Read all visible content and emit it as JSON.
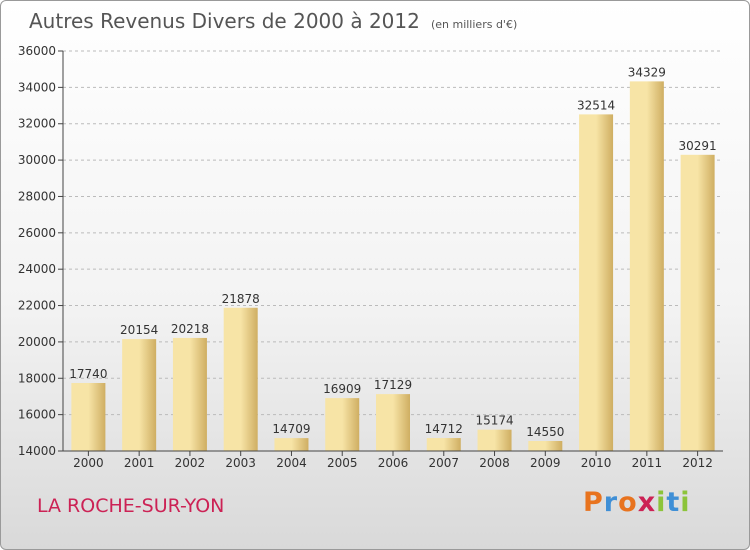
{
  "header": {
    "title": "Autres Revenus Divers de 2000 à 2012",
    "subtitle": "(en milliers d'€)"
  },
  "footer": {
    "place": "LA ROCHE-SUR-YON",
    "brand": "Proxiti",
    "brand_colors": [
      "#e8731e",
      "#3f8fd6",
      "#e8731e",
      "#cc2255",
      "#8cc43a",
      "#3f8fd6",
      "#8cc43a"
    ]
  },
  "colors": {
    "bar_light": "#f7e4a6",
    "bar_dark": "#cfae62",
    "axis": "#444444",
    "grid": "#bbbbbb",
    "text": "#333333"
  },
  "chart_data": {
    "type": "bar",
    "title": "Autres Revenus Divers de 2000 à 2012",
    "subtitle": "(en milliers d'€)",
    "categories": [
      "2000",
      "2001",
      "2002",
      "2003",
      "2004",
      "2005",
      "2006",
      "2007",
      "2008",
      "2009",
      "2010",
      "2011",
      "2012"
    ],
    "values": [
      17740,
      20154,
      20218,
      21878,
      14709,
      16909,
      17129,
      14712,
      15174,
      14550,
      32514,
      34329,
      30291
    ],
    "ylim": [
      14000,
      36000
    ],
    "yticks": [
      14000,
      16000,
      18000,
      20000,
      22000,
      24000,
      26000,
      28000,
      30000,
      32000,
      34000,
      36000
    ],
    "xlabel": "",
    "ylabel": "",
    "grid": "horizontal dashed",
    "data_labels": true
  }
}
